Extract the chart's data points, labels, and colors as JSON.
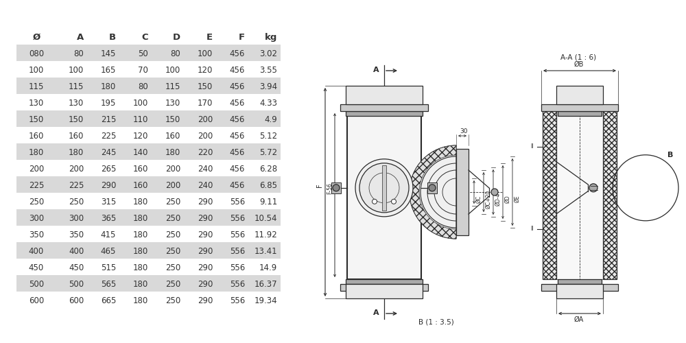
{
  "table_headers": [
    "Ø",
    "A",
    "B",
    "C",
    "D",
    "E",
    "F",
    "kg"
  ],
  "table_rows": [
    [
      "080",
      "80",
      "145",
      "50",
      "80",
      "100",
      "456",
      "3.02"
    ],
    [
      "100",
      "100",
      "165",
      "70",
      "100",
      "120",
      "456",
      "3.55"
    ],
    [
      "115",
      "115",
      "180",
      "80",
      "115",
      "150",
      "456",
      "3.94"
    ],
    [
      "130",
      "130",
      "195",
      "100",
      "130",
      "170",
      "456",
      "4.33"
    ],
    [
      "150",
      "150",
      "215",
      "110",
      "150",
      "200",
      "456",
      "4.9"
    ],
    [
      "160",
      "160",
      "225",
      "120",
      "160",
      "200",
      "456",
      "5.12"
    ],
    [
      "180",
      "180",
      "245",
      "140",
      "180",
      "220",
      "456",
      "5.72"
    ],
    [
      "200",
      "200",
      "265",
      "160",
      "200",
      "240",
      "456",
      "6.28"
    ],
    [
      "225",
      "225",
      "290",
      "160",
      "200",
      "240",
      "456",
      "6.85"
    ],
    [
      "250",
      "250",
      "315",
      "180",
      "250",
      "290",
      "556",
      "9.11"
    ],
    [
      "300",
      "300",
      "365",
      "180",
      "250",
      "290",
      "556",
      "10.54"
    ],
    [
      "350",
      "350",
      "415",
      "180",
      "250",
      "290",
      "556",
      "11.92"
    ],
    [
      "400",
      "400",
      "465",
      "180",
      "250",
      "290",
      "556",
      "13.41"
    ],
    [
      "450",
      "450",
      "515",
      "180",
      "250",
      "290",
      "556",
      "14.9"
    ],
    [
      "500",
      "500",
      "565",
      "180",
      "250",
      "290",
      "556",
      "16.37"
    ],
    [
      "600",
      "600",
      "665",
      "180",
      "250",
      "290",
      "556",
      "19.34"
    ]
  ],
  "shaded_rows": [
    0,
    2,
    4,
    6,
    8,
    10,
    12,
    14
  ],
  "row_bg_shaded": "#d9d9d9",
  "row_bg_white": "#ffffff",
  "text_color": "#333333",
  "background_color": "#ffffff",
  "line_color": "#2a2a2a"
}
